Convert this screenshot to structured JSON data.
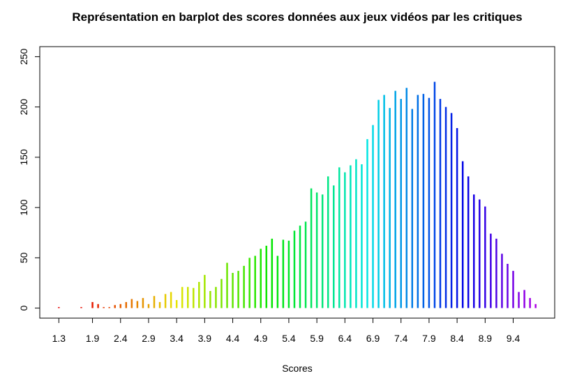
{
  "chart_data": {
    "type": "bar",
    "title": "Représentation en barplot des scores données aux jeux vidéos par les critiques",
    "x_label": "Scores",
    "x": [
      1.3,
      1.7,
      1.9,
      2.0,
      2.1,
      2.2,
      2.3,
      2.4,
      2.5,
      2.6,
      2.7,
      2.8,
      2.9,
      3.0,
      3.1,
      3.2,
      3.3,
      3.4,
      3.5,
      3.6,
      3.7,
      3.8,
      3.9,
      4.0,
      4.1,
      4.2,
      4.3,
      4.4,
      4.5,
      4.6,
      4.7,
      4.8,
      4.9,
      5.0,
      5.1,
      5.2,
      5.3,
      5.4,
      5.5,
      5.6,
      5.7,
      5.8,
      5.9,
      6.0,
      6.1,
      6.2,
      6.3,
      6.4,
      6.5,
      6.6,
      6.7,
      6.8,
      6.9,
      7.0,
      7.1,
      7.2,
      7.3,
      7.4,
      7.5,
      7.6,
      7.7,
      7.8,
      7.9,
      8.0,
      8.1,
      8.2,
      8.3,
      8.4,
      8.5,
      8.6,
      8.7,
      8.8,
      8.9,
      9.0,
      9.1,
      9.2,
      9.3,
      9.4,
      9.5,
      9.6,
      9.7,
      9.8
    ],
    "values": [
      1,
      1,
      6,
      4,
      1,
      1,
      3,
      4,
      6,
      9,
      7,
      10,
      4,
      12,
      6,
      14,
      16,
      8,
      21,
      21,
      20,
      26,
      33,
      17,
      21,
      29,
      45,
      35,
      37,
      42,
      50,
      52,
      59,
      62,
      69,
      52,
      68,
      67,
      77,
      82,
      86,
      119,
      115,
      113,
      131,
      122,
      140,
      135,
      142,
      148,
      143,
      168,
      182,
      207,
      212,
      199,
      216,
      208,
      219,
      198,
      212,
      213,
      209,
      225,
      208,
      200,
      194,
      179,
      146,
      131,
      113,
      108,
      101,
      74,
      69,
      54,
      44,
      37,
      16,
      18,
      10,
      4
    ],
    "xlim": [
      0.96,
      10.14
    ],
    "xticks": [
      1.3,
      1.9,
      2.4,
      2.9,
      3.4,
      3.9,
      4.4,
      4.9,
      5.4,
      5.9,
      6.4,
      6.9,
      7.4,
      7.9,
      8.4,
      8.9,
      9.4
    ],
    "ylim": [
      -10,
      260
    ],
    "yticks": [
      0,
      50,
      100,
      150,
      200,
      250
    ],
    "hue_range": [
      0,
      285
    ]
  }
}
